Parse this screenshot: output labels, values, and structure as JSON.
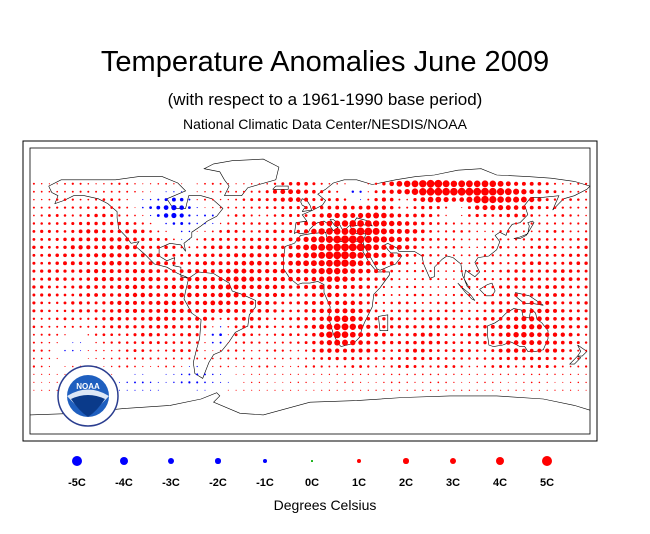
{
  "title": "Temperature Anomalies June 2009",
  "subtitle": "(with respect to a 1961-1990 base period)",
  "source": "National Climatic Data Center/NESDIS/NOAA",
  "logo_text": "NOAA",
  "map": {
    "projection": "equirectangular",
    "lon_range": [
      -180,
      180
    ],
    "lat_range": [
      -90,
      90
    ],
    "grid_spacing_deg": 5,
    "warm_color": "#ff0000",
    "cold_color": "#0000ff",
    "land_outline_color": "#000000",
    "frame_color": "#000000"
  },
  "legend": {
    "items": [
      {
        "label": "-5C",
        "value": -5,
        "color": "#0000ff"
      },
      {
        "label": "-4C",
        "value": -4,
        "color": "#0000ff"
      },
      {
        "label": "-3C",
        "value": -3,
        "color": "#0000ff"
      },
      {
        "label": "-2C",
        "value": -2,
        "color": "#0000ff"
      },
      {
        "label": "-1C",
        "value": -1,
        "color": "#0000ff"
      },
      {
        "label": "0C",
        "value": 0,
        "color": "#00aa00"
      },
      {
        "label": "1C",
        "value": 1,
        "color": "#ff0000"
      },
      {
        "label": "2C",
        "value": 2,
        "color": "#ff0000"
      },
      {
        "label": "3C",
        "value": 3,
        "color": "#ff0000"
      },
      {
        "label": "4C",
        "value": 4,
        "color": "#ff0000"
      },
      {
        "label": "5C",
        "value": 5,
        "color": "#ff0000"
      }
    ],
    "xlabel": "Degrees Celsius"
  }
}
